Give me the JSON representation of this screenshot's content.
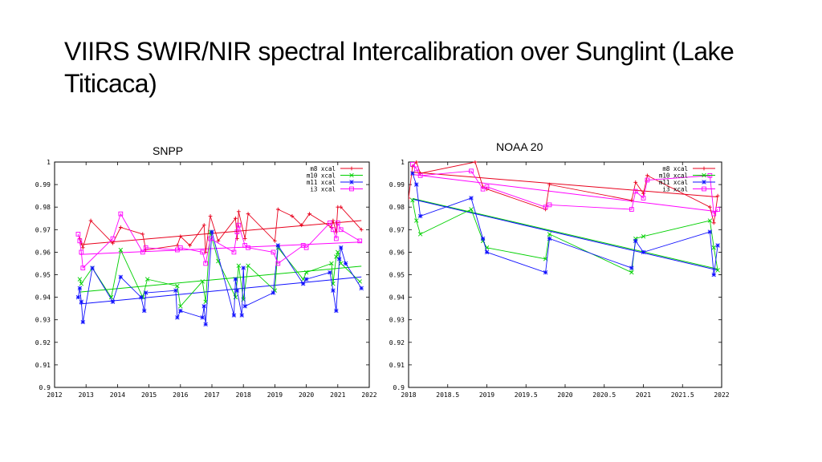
{
  "slide": {
    "title": "VIIRS SWIR/NIR spectral Intercalibration over Sunglint (Lake Titicaca)"
  },
  "colors": {
    "m8": "#e8001c",
    "m10": "#00d000",
    "m11": "#1010ff",
    "i3": "#ff00ff"
  },
  "chart_data": [
    {
      "type": "line",
      "title": "SNPP",
      "xlim": [
        2012,
        2022
      ],
      "ylim": [
        0.9,
        1.0
      ],
      "xticks": [
        "2012",
        "2013",
        "2014",
        "2015",
        "2016",
        "2017",
        "2018",
        "2019",
        "2020",
        "2021",
        "2022"
      ],
      "yticks": [
        "0.9",
        "0.91",
        "0.92",
        "0.93",
        "0.94",
        "0.95",
        "0.96",
        "0.97",
        "0.98",
        "0.99",
        "1"
      ],
      "series": [
        {
          "name": "m8 xcal",
          "color": "#e8001c",
          "x": [
            2012.8,
            2012.85,
            2012.9,
            2013.15,
            2013.85,
            2014.1,
            2014.8,
            2014.9,
            2015.9,
            2016.0,
            2016.3,
            2016.75,
            2016.8,
            2016.95,
            2017.2,
            2017.75,
            2017.8,
            2017.85,
            2018.05,
            2018.15,
            2019.0,
            2019.1,
            2019.55,
            2019.85,
            2020.1,
            2020.8,
            2020.85,
            2020.95,
            2021.0,
            2021.1,
            2021.75
          ],
          "y": [
            0.966,
            0.964,
            0.962,
            0.974,
            0.964,
            0.971,
            0.968,
            0.961,
            0.963,
            0.967,
            0.963,
            0.972,
            0.96,
            0.976,
            0.965,
            0.975,
            0.966,
            0.978,
            0.966,
            0.977,
            0.965,
            0.979,
            0.976,
            0.972,
            0.977,
            0.971,
            0.974,
            0.969,
            0.98,
            0.98,
            0.97
          ]
        },
        {
          "name": "m10 xcal",
          "color": "#00d000",
          "x": [
            2012.8,
            2012.85,
            2013.2,
            2013.8,
            2014.1,
            2014.8,
            2014.95,
            2015.9,
            2016.0,
            2016.7,
            2016.8,
            2016.95,
            2017.2,
            2017.75,
            2017.85,
            2018.0,
            2018.15,
            2019.0,
            2019.1,
            2019.9,
            2020.0,
            2020.8,
            2020.85,
            2020.95,
            2021.0,
            2021.1,
            2021.7
          ],
          "y": [
            0.948,
            0.946,
            0.953,
            0.94,
            0.961,
            0.94,
            0.948,
            0.945,
            0.936,
            0.947,
            0.938,
            0.969,
            0.956,
            0.94,
            0.954,
            0.939,
            0.954,
            0.943,
            0.962,
            0.948,
            0.951,
            0.955,
            0.946,
            0.958,
            0.96,
            0.955,
            0.947
          ]
        },
        {
          "name": "m11 xcal",
          "color": "#1010ff",
          "x": [
            2012.75,
            2012.8,
            2012.85,
            2012.9,
            2013.2,
            2013.85,
            2014.1,
            2014.75,
            2014.85,
            2014.9,
            2015.85,
            2015.9,
            2016.0,
            2016.7,
            2016.75,
            2016.8,
            2017.0,
            2017.7,
            2017.75,
            2017.8,
            2017.95,
            2018.0,
            2018.05,
            2018.95,
            2019.1,
            2019.9,
            2020.0,
            2020.75,
            2020.85,
            2020.95,
            2021.05,
            2021.1,
            2021.25,
            2021.75
          ],
          "y": [
            0.94,
            0.944,
            0.938,
            0.929,
            0.953,
            0.938,
            0.949,
            0.94,
            0.934,
            0.942,
            0.943,
            0.931,
            0.934,
            0.931,
            0.936,
            0.928,
            0.969,
            0.932,
            0.948,
            0.943,
            0.932,
            0.953,
            0.936,
            0.942,
            0.963,
            0.946,
            0.948,
            0.951,
            0.943,
            0.934,
            0.957,
            0.962,
            0.955,
            0.944
          ]
        },
        {
          "name": "i3 xcal",
          "color": "#ff00ff",
          "x": [
            2012.75,
            2012.8,
            2012.85,
            2012.9,
            2013.85,
            2014.1,
            2014.8,
            2014.9,
            2015.9,
            2016.0,
            2016.7,
            2016.8,
            2016.95,
            2017.7,
            2017.8,
            2017.85,
            2018.05,
            2018.15,
            2018.95,
            2019.1,
            2019.9,
            2020.0,
            2020.75,
            2020.85,
            2020.95,
            2021.0,
            2021.1,
            2021.7
          ],
          "y": [
            0.968,
            0.965,
            0.96,
            0.953,
            0.966,
            0.977,
            0.96,
            0.962,
            0.961,
            0.962,
            0.96,
            0.955,
            0.966,
            0.96,
            0.969,
            0.972,
            0.963,
            0.962,
            0.96,
            0.955,
            0.963,
            0.962,
            0.973,
            0.97,
            0.966,
            0.973,
            0.97,
            0.965
          ]
        }
      ],
      "trendlines": [
        {
          "series": "m8 xcal",
          "x": [
            2012.8,
            2021.75
          ],
          "y": [
            0.9633,
            0.974
          ]
        },
        {
          "series": "m10 xcal",
          "x": [
            2012.8,
            2021.75
          ],
          "y": [
            0.9423,
            0.9538
          ]
        },
        {
          "series": "m11 xcal",
          "x": [
            2012.8,
            2021.75
          ],
          "y": [
            0.937,
            0.949
          ]
        },
        {
          "series": "i3 xcal",
          "x": [
            2012.8,
            2021.75
          ],
          "y": [
            0.959,
            0.9645
          ]
        }
      ],
      "grid": false,
      "legend": "top-right"
    },
    {
      "type": "line",
      "title": "NOAA 20",
      "xlim": [
        2018,
        2022
      ],
      "ylim": [
        0.9,
        1.0
      ],
      "xticks": [
        "2018",
        "2018.5",
        "2019",
        "2019.5",
        "2020",
        "2020.5",
        "2021",
        "2021.5",
        "2022"
      ],
      "yticks": [
        "0.9",
        "0.91",
        "0.92",
        "0.93",
        "0.94",
        "0.95",
        "0.96",
        "0.97",
        "0.98",
        "0.99",
        "1"
      ],
      "series": [
        {
          "name": "m8 xcal",
          "color": "#e8001c",
          "x": [
            2018.0,
            2018.05,
            2018.1,
            2018.15,
            2018.85,
            2018.95,
            2019.0,
            2019.75,
            2019.8,
            2020.85,
            2020.9,
            2021.0,
            2021.05,
            2021.85,
            2021.9,
            2021.95
          ],
          "y": [
            0.984,
            0.998,
            1.0,
            0.995,
            1.0,
            0.989,
            0.988,
            0.979,
            0.99,
            0.983,
            0.991,
            0.986,
            0.994,
            0.98,
            0.973,
            0.985
          ]
        },
        {
          "name": "m10 xcal",
          "color": "#00d000",
          "x": [
            2018.05,
            2018.1,
            2018.15,
            2018.8,
            2018.95,
            2019.0,
            2019.75,
            2019.8,
            2020.85,
            2020.9,
            2021.0,
            2021.85,
            2021.9,
            2021.95
          ],
          "y": [
            0.983,
            0.974,
            0.968,
            0.979,
            0.965,
            0.962,
            0.957,
            0.968,
            0.951,
            0.966,
            0.967,
            0.974,
            0.962,
            0.952
          ]
        },
        {
          "name": "m11 xcal",
          "color": "#1010ff",
          "x": [
            2018.05,
            2018.1,
            2018.15,
            2018.8,
            2018.95,
            2019.0,
            2019.75,
            2019.8,
            2020.85,
            2020.9,
            2021.0,
            2021.85,
            2021.9,
            2021.95
          ],
          "y": [
            0.995,
            0.99,
            0.976,
            0.984,
            0.966,
            0.96,
            0.951,
            0.966,
            0.953,
            0.965,
            0.96,
            0.969,
            0.95,
            0.963
          ]
        },
        {
          "name": "i3 xcal",
          "color": "#ff00ff",
          "x": [
            2018.05,
            2018.1,
            2018.15,
            2018.8,
            2018.95,
            2019.0,
            2019.75,
            2019.8,
            2020.85,
            2020.9,
            2021.0,
            2021.05,
            2021.85,
            2021.9,
            2021.95
          ],
          "y": [
            0.999,
            0.997,
            0.994,
            0.996,
            0.988,
            0.989,
            0.98,
            0.981,
            0.979,
            0.987,
            0.984,
            0.992,
            0.994,
            0.977,
            0.979
          ]
        }
      ],
      "trendlines": [
        {
          "series": "m8 xcal",
          "x": [
            2018.05,
            2021.95
          ],
          "y": [
            0.9955,
            0.9845
          ]
        },
        {
          "series": "m10 xcal",
          "x": [
            2018.05,
            2021.95
          ],
          "y": [
            0.9838,
            0.9525
          ]
        },
        {
          "series": "m11 xcal",
          "x": [
            2018.05,
            2021.95
          ],
          "y": [
            0.9835,
            0.952
          ]
        },
        {
          "series": "i3 xcal",
          "x": [
            2018.05,
            2021.95
          ],
          "y": [
            0.9945,
            0.978
          ]
        }
      ],
      "grid": false,
      "legend": "top-right"
    }
  ]
}
